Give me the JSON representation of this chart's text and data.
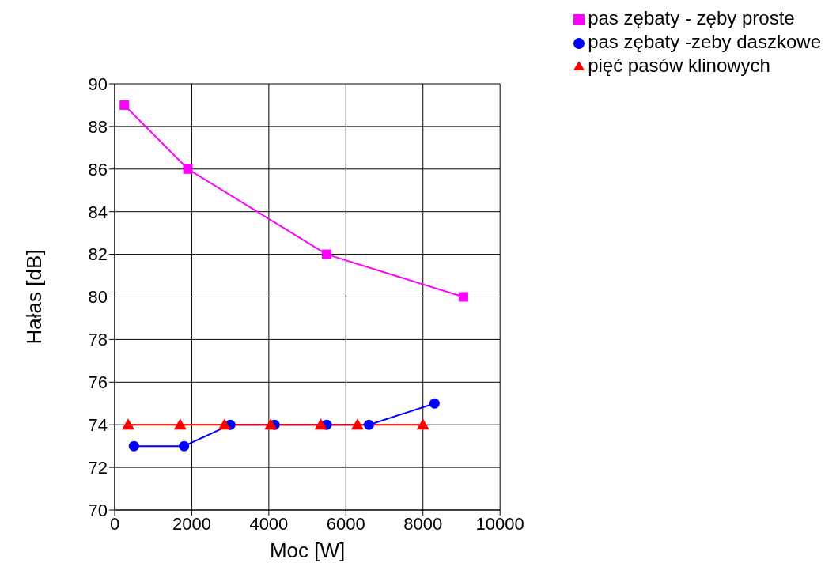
{
  "chart_data": {
    "type": "line",
    "xlabel": "Moc [W]",
    "ylabel": "Hałas [dB]",
    "xlim": [
      0,
      10000
    ],
    "xticks": [
      0,
      2000,
      4000,
      6000,
      8000,
      10000
    ],
    "ylim": [
      70,
      90
    ],
    "yticks": [
      70,
      72,
      74,
      76,
      78,
      80,
      82,
      84,
      86,
      88,
      90
    ],
    "grid": true,
    "legend": "top right",
    "line_style": "solid",
    "series": [
      {
        "name": "pas zębaty - zęby proste",
        "color": "#ff00ff",
        "marker": "square",
        "x": [
          250,
          1900,
          5500,
          9050
        ],
        "values": [
          89,
          86,
          82,
          80
        ]
      },
      {
        "name": "pas zębaty -zeby daszkowe",
        "color": "#0000ff",
        "marker": "circle",
        "x": [
          500,
          1800,
          3000,
          4150,
          5500,
          6600,
          8300
        ],
        "values": [
          73,
          73,
          74,
          74,
          74,
          74,
          75
        ]
      },
      {
        "name": "pięć pasów klinowych",
        "color": "#ff0000",
        "marker": "triangle",
        "x": [
          350,
          1700,
          2850,
          4050,
          5350,
          6300,
          8000
        ],
        "values": [
          74,
          74,
          74,
          74,
          74,
          74,
          74
        ]
      }
    ]
  }
}
